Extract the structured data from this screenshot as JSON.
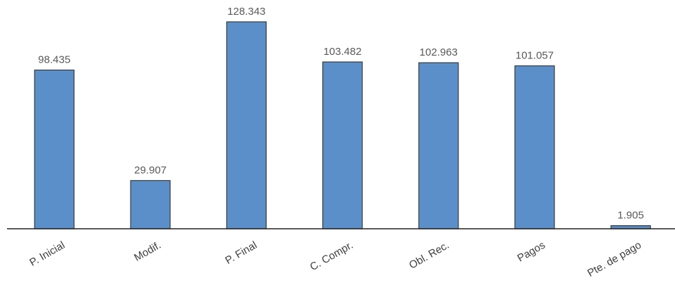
{
  "chart_data": {
    "type": "bar",
    "title": "",
    "xlabel": "",
    "ylabel": "",
    "categories": [
      "P. Inicial",
      "Modif.",
      "P. Final",
      "C. Compr.",
      "Obl. Rec.",
      "Pagos",
      "Pte. de pago"
    ],
    "values": [
      98.435,
      29.907,
      128.343,
      103.482,
      102.963,
      101.057,
      1.905
    ],
    "data_labels": [
      "98.435",
      "29.907",
      "128.343",
      "103.482",
      "102.963",
      "101.057",
      "1.905"
    ],
    "ylim": [
      0,
      128.343
    ],
    "grid": false,
    "legend": "none",
    "x_tick_rotation_deg": -30,
    "colors": {
      "bar_fill": "#5b8fc9",
      "bar_stroke": "#3a3a3a",
      "axis": "#222222"
    }
  }
}
